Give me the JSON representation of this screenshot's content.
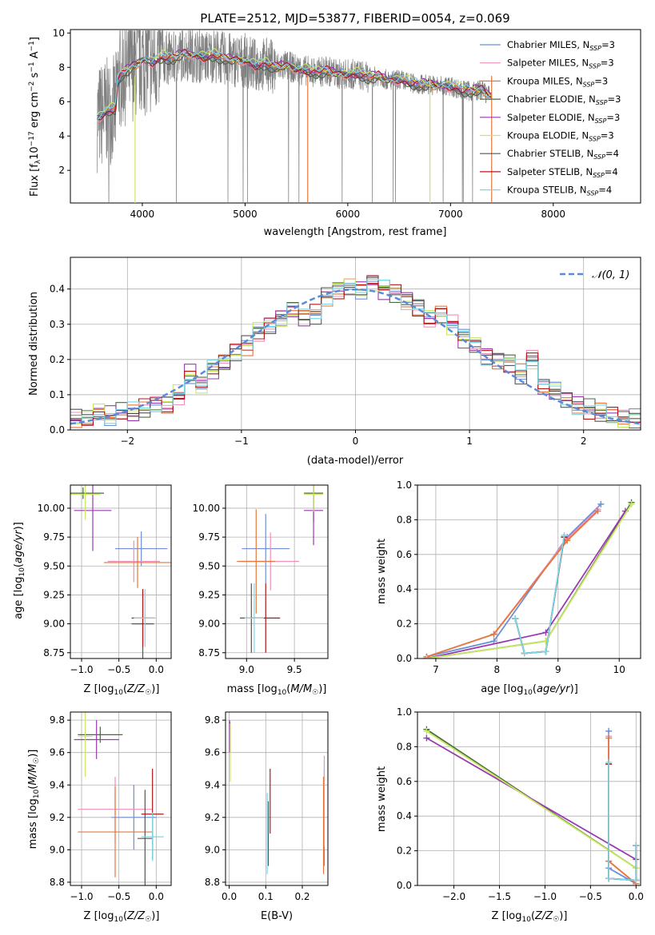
{
  "title": "PLATE=2512, MJD=53877, FIBERID=0054, z=0.069",
  "colors": {
    "Chabrier MILES": "#6f8fd8",
    "Salpeter MILES": "#f08fb8",
    "Kroupa MILES": "#e8763a",
    "Chabrier ELODIE": "#4a6a40",
    "Salpeter ELODIE": "#9a3ab0",
    "Kroupa ELODIE": "#c8e860",
    "Chabrier STELIB": "#555555",
    "Salpeter STELIB": "#b01818",
    "Kroupa STELIB": "#7ad8e8",
    "observed spectrum": "#808080",
    "normal curve": "#5b8bd8"
  },
  "chart_data": [
    {
      "id": "spectrum",
      "type": "line",
      "title": "PLATE=2512, MJD=53877, FIBERID=0054, z=0.069",
      "xlabel": "wavelength [Angstrom, rest frame]",
      "ylabel": "Flux [f_λ 10^-17 erg cm^-2 s^-1 A^-1]",
      "xlim": [
        3300,
        8850
      ],
      "ylim": [
        0.1,
        10.2
      ],
      "xticks": [
        "4000",
        "5000",
        "6000",
        "7000",
        "8000"
      ],
      "yticks": [
        "2",
        "4",
        "6",
        "8",
        "10"
      ],
      "grid": false,
      "legend_placement": "top-right",
      "legend": [
        "Chabrier MILES, N_SSP=3",
        "Salpeter MILES, N_SSP=3",
        "Kroupa MILES, N_SSP=3",
        "Chabrier ELODIE, N_SSP=3",
        "Salpeter ELODIE, N_SSP=3",
        "Kroupa ELODIE, N_SSP=3",
        "Chabrier STELIB, N_SSP=4",
        "Salpeter STELIB, N_SSP=4",
        "Kroupa STELIB, N_SSP=4"
      ],
      "model_curve": {
        "x": [
          3550,
          3650,
          3740,
          3760,
          3800,
          3900,
          4000,
          4100,
          4200,
          4300,
          4400,
          4500,
          4600,
          4700,
          4800,
          4900,
          5000,
          5100,
          5200,
          5300,
          5400,
          5500,
          5600,
          5700,
          5800,
          5900,
          6000,
          6100,
          6200,
          6300,
          6400,
          6500,
          6600,
          6700,
          6800,
          6900,
          7000,
          7100,
          7200,
          7300,
          7400
        ],
        "y": [
          5.0,
          5.4,
          5.6,
          7.2,
          7.6,
          8.0,
          8.4,
          8.3,
          8.6,
          8.5,
          8.8,
          8.7,
          8.6,
          8.7,
          8.5,
          8.4,
          8.4,
          8.1,
          8.2,
          8.0,
          8.1,
          7.9,
          7.8,
          7.7,
          7.8,
          7.6,
          7.6,
          7.6,
          7.4,
          7.5,
          7.2,
          7.3,
          7.1,
          7.0,
          7.0,
          6.9,
          6.9,
          6.7,
          6.6,
          6.7,
          6.3
        ]
      }
    },
    {
      "id": "residuals",
      "type": "line",
      "xlabel": "(data-model)/error",
      "ylabel": "Normed distribution",
      "xlim": [
        -2.5,
        2.5
      ],
      "ylim": [
        0,
        0.49
      ],
      "xticks": [
        "−2",
        "−1",
        "0",
        "1",
        "2"
      ],
      "yticks": [
        "0.0",
        "0.1",
        "0.2",
        "0.3",
        "0.4"
      ],
      "grid": true,
      "legend_placement": "top-right",
      "legend": [
        "𝒩(0, 1)"
      ],
      "bin_edges": [
        -2.5,
        -2.4,
        -2.3,
        -2.2,
        -2.1,
        -2.0,
        -1.9,
        -1.8,
        -1.7,
        -1.6,
        -1.5,
        -1.4,
        -1.3,
        -1.2,
        -1.1,
        -1.0,
        -0.9,
        -0.8,
        -0.7,
        -0.6,
        -0.5,
        -0.4,
        -0.3,
        -0.2,
        -0.1,
        0.0,
        0.1,
        0.2,
        0.3,
        0.4,
        0.5,
        0.6,
        0.7,
        0.8,
        0.9,
        1.0,
        1.1,
        1.2,
        1.3,
        1.4,
        1.5,
        1.6,
        1.7,
        1.8,
        1.9,
        2.0,
        2.1,
        2.2,
        2.3,
        2.4,
        2.5
      ],
      "histogram": [
        0.03,
        0.03,
        0.05,
        0.04,
        0.05,
        0.05,
        0.06,
        0.07,
        0.07,
        0.1,
        0.16,
        0.13,
        0.17,
        0.19,
        0.22,
        0.24,
        0.28,
        0.3,
        0.32,
        0.34,
        0.32,
        0.33,
        0.38,
        0.4,
        0.41,
        0.4,
        0.42,
        0.4,
        0.39,
        0.37,
        0.35,
        0.32,
        0.33,
        0.3,
        0.26,
        0.24,
        0.21,
        0.2,
        0.19,
        0.16,
        0.2,
        0.12,
        0.11,
        0.09,
        0.07,
        0.06,
        0.05,
        0.04,
        0.03,
        0.03
      ]
    },
    {
      "id": "age-vs-z",
      "type": "scatter",
      "xlabel": "Z [log₁₀(Z/Z☉)]",
      "ylabel": "age [log₁₀(age/yr)]",
      "xlim": [
        -1.15,
        0.2
      ],
      "ylim": [
        8.7,
        10.2
      ],
      "xticks": [
        "−1.0",
        "−0.5",
        "0.0"
      ],
      "yticks": [
        "8.75",
        "9.00",
        "9.25",
        "9.50",
        "9.75",
        "10.00"
      ],
      "grid": true,
      "error_crosses": [
        {
          "series": "Chabrier MILES",
          "x": -0.2,
          "xerr": 0.35,
          "y": 9.65,
          "yerr": 0.15
        },
        {
          "series": "Salpeter MILES",
          "x": -0.3,
          "xerr": 0.35,
          "y": 9.54,
          "yerr": 0.18
        },
        {
          "series": "Kroupa MILES",
          "x": -0.25,
          "xerr": 0.45,
          "y": 9.53,
          "yerr": 0.22
        },
        {
          "series": "Chabrier ELODIE",
          "x": -0.98,
          "xerr": 0.28,
          "y": 10.13,
          "yerr": 0.05
        },
        {
          "series": "Salpeter ELODIE",
          "x": -0.85,
          "xerr": 0.25,
          "y": 9.98,
          "yerr": 0.35
        },
        {
          "series": "Kroupa ELODIE",
          "x": -0.95,
          "xerr": 0.2,
          "y": 10.12,
          "yerr": 0.22
        },
        {
          "series": "Chabrier STELIB",
          "x": -0.18,
          "xerr": 0.15,
          "y": 9.0,
          "yerr": 0.3
        },
        {
          "series": "Salpeter STELIB",
          "x": -0.18,
          "xerr": 0.15,
          "y": 9.05,
          "yerr": 0.25
        },
        {
          "series": "Kroupa STELIB",
          "x": -0.15,
          "xerr": 0.15,
          "y": 9.05,
          "yerr": 0.25
        }
      ]
    },
    {
      "id": "age-vs-mass",
      "type": "scatter",
      "xlabel": "mass [log₁₀(M/M☉)]",
      "ylabel": "",
      "xlim": [
        8.78,
        9.85
      ],
      "ylim": [
        8.7,
        10.2
      ],
      "xticks": [
        "9.0",
        "9.5"
      ],
      "yticks": [
        "8.75",
        "9.00",
        "9.25",
        "9.50",
        "9.75",
        "10.00"
      ],
      "grid": true,
      "error_crosses": [
        {
          "series": "Chabrier MILES",
          "x": 9.2,
          "xerr": 0.25,
          "y": 9.65,
          "yerr": 0.3
        },
        {
          "series": "Salpeter MILES",
          "x": 9.25,
          "xerr": 0.3,
          "y": 9.54,
          "yerr": 0.25
        },
        {
          "series": "Kroupa MILES",
          "x": 9.1,
          "xerr": 0.2,
          "y": 9.54,
          "yerr": 0.45
        },
        {
          "series": "Chabrier ELODIE",
          "x": 9.7,
          "xerr": 0.1,
          "y": 10.13,
          "yerr": 0.25
        },
        {
          "series": "Salpeter ELODIE",
          "x": 9.7,
          "xerr": 0.1,
          "y": 9.98,
          "yerr": 0.3
        },
        {
          "series": "Kroupa ELODIE",
          "x": 9.7,
          "xerr": 0.1,
          "y": 10.12,
          "yerr": 0.15
        },
        {
          "series": "Chabrier STELIB",
          "x": 9.05,
          "xerr": 0.12,
          "y": 9.05,
          "yerr": 0.3
        },
        {
          "series": "Salpeter STELIB",
          "x": 9.2,
          "xerr": 0.15,
          "y": 9.05,
          "yerr": 0.3
        },
        {
          "series": "Kroupa STELIB",
          "x": 9.08,
          "xerr": 0.1,
          "y": 9.05,
          "yerr": 0.3
        }
      ]
    },
    {
      "id": "weight-vs-age",
      "type": "line",
      "xlabel": "age [log₁₀(age/yr)]",
      "ylabel": "mass weight",
      "xlim": [
        6.7,
        10.35
      ],
      "ylim": [
        0,
        1
      ],
      "xticks": [
        "7",
        "8",
        "9",
        "10"
      ],
      "yticks": [
        "0.0",
        "0.2",
        "0.4",
        "0.6",
        "0.8",
        "1.0"
      ],
      "grid": true,
      "series": [
        {
          "name": "Chabrier MILES",
          "x": [
            6.85,
            7.95,
            9.15,
            9.7
          ],
          "y": [
            0.01,
            0.1,
            0.7,
            0.89
          ]
        },
        {
          "name": "Salpeter MILES",
          "x": [
            6.85,
            7.95,
            9.15,
            9.65
          ],
          "y": [
            0.01,
            0.14,
            0.69,
            0.86
          ]
        },
        {
          "name": "Kroupa MILES",
          "x": [
            6.85,
            7.95,
            9.15,
            9.65
          ],
          "y": [
            0.01,
            0.14,
            0.68,
            0.85
          ]
        },
        {
          "name": "Chabrier ELODIE",
          "x": [
            6.85,
            8.8,
            10.2
          ],
          "y": [
            0.0,
            0.1,
            0.9
          ]
        },
        {
          "name": "Salpeter ELODIE",
          "x": [
            6.85,
            8.8,
            10.1
          ],
          "y": [
            0.0,
            0.15,
            0.85
          ]
        },
        {
          "name": "Kroupa ELODIE",
          "x": [
            6.85,
            8.8,
            10.2
          ],
          "y": [
            0.0,
            0.1,
            0.89
          ]
        },
        {
          "name": "Chabrier STELIB",
          "x": [
            8.3,
            8.45,
            8.8,
            9.1
          ],
          "y": [
            0.23,
            0.03,
            0.04,
            0.7
          ]
        },
        {
          "name": "Salpeter STELIB",
          "x": [
            8.3,
            8.45,
            8.8,
            9.1
          ],
          "y": [
            0.23,
            0.03,
            0.04,
            0.7
          ]
        },
        {
          "name": "Kroupa STELIB",
          "x": [
            8.3,
            8.45,
            8.8,
            9.1
          ],
          "y": [
            0.23,
            0.03,
            0.04,
            0.71
          ]
        }
      ]
    },
    {
      "id": "mass-vs-z",
      "type": "scatter",
      "xlabel": "Z [log₁₀(Z/Z☉)]",
      "ylabel": "mass [log₁₀(M/M☉)]",
      "xlim": [
        -1.15,
        0.2
      ],
      "ylim": [
        8.78,
        9.85
      ],
      "xticks": [
        "−1.0",
        "−0.5",
        "0.0"
      ],
      "yticks": [
        "8.8",
        "9.0",
        "9.2",
        "9.4",
        "9.6",
        "9.8"
      ],
      "grid": true,
      "error_crosses": [
        {
          "series": "Chabrier MILES",
          "x": -0.3,
          "xerr": 0.3,
          "y": 9.2,
          "yerr": 0.2
        },
        {
          "series": "Salpeter MILES",
          "x": -0.55,
          "xerr": 0.5,
          "y": 9.25,
          "yerr": 0.2
        },
        {
          "series": "Kroupa MILES",
          "x": -0.55,
          "xerr": 0.5,
          "y": 9.11,
          "yerr": 0.28
        },
        {
          "series": "Chabrier ELODIE",
          "x": -0.75,
          "xerr": 0.3,
          "y": 9.71,
          "yerr": 0.05
        },
        {
          "series": "Salpeter ELODIE",
          "x": -0.8,
          "xerr": 0.3,
          "y": 9.68,
          "yerr": 0.12
        },
        {
          "series": "Kroupa ELODIE",
          "x": -0.95,
          "xerr": 0.1,
          "y": 9.7,
          "yerr": 0.25
        },
        {
          "series": "Chabrier STELIB",
          "x": -0.15,
          "xerr": 0.1,
          "y": 9.07,
          "yerr": 0.3
        },
        {
          "series": "Salpeter STELIB",
          "x": -0.05,
          "xerr": 0.15,
          "y": 9.22,
          "yerr": 0.28
        },
        {
          "series": "Kroupa STELIB",
          "x": -0.05,
          "xerr": 0.15,
          "y": 9.08,
          "yerr": 0.15
        }
      ]
    },
    {
      "id": "mass-vs-ebv",
      "type": "scatter",
      "xlabel": "E(B-V)",
      "ylabel": "",
      "xlim": [
        -0.01,
        0.27
      ],
      "ylim": [
        8.78,
        9.85
      ],
      "xticks": [
        "0.0",
        "0.1",
        "0.2"
      ],
      "yticks": [
        "8.8",
        "9.0",
        "9.2",
        "9.4",
        "9.6",
        "9.8"
      ],
      "grid": true,
      "error_bars": [
        {
          "series": "Chabrier MILES",
          "x": 0.26,
          "y": 9.2,
          "yerr": 0.3
        },
        {
          "series": "Salpeter MILES",
          "x": 0.26,
          "y": 9.3,
          "yerr": 0.28
        },
        {
          "series": "Kroupa MILES",
          "x": 0.258,
          "y": 9.15,
          "yerr": 0.3
        },
        {
          "series": "Chabrier ELODIE",
          "x": 0.002,
          "y": 9.71,
          "yerr": 0.08
        },
        {
          "series": "Salpeter ELODIE",
          "x": 0.001,
          "y": 9.7,
          "yerr": 0.1
        },
        {
          "series": "Kroupa ELODIE",
          "x": 0.003,
          "y": 9.6,
          "yerr": 0.18
        },
        {
          "series": "Chabrier STELIB",
          "x": 0.107,
          "y": 9.1,
          "yerr": 0.2
        },
        {
          "series": "Salpeter STELIB",
          "x": 0.112,
          "y": 9.3,
          "yerr": 0.2
        },
        {
          "series": "Kroupa STELIB",
          "x": 0.104,
          "y": 9.1,
          "yerr": 0.25
        }
      ]
    },
    {
      "id": "weight-vs-z",
      "type": "line",
      "xlabel": "Z [log₁₀(Z/Z☉)]",
      "ylabel": "mass weight",
      "xlim": [
        -2.4,
        0.05
      ],
      "ylim": [
        0,
        1
      ],
      "xticks": [
        "−2.0",
        "−1.5",
        "−1.0",
        "−0.5",
        "0.0"
      ],
      "yticks": [
        "0.0",
        "0.2",
        "0.4",
        "0.6",
        "0.8",
        "1.0"
      ],
      "grid": true,
      "series": [
        {
          "name": "Chabrier MILES",
          "x": [
            0.0,
            -0.3,
            -0.3
          ],
          "y": [
            0.01,
            0.1,
            0.89
          ]
        },
        {
          "name": "Salpeter MILES",
          "x": [
            0.0,
            -0.3,
            -0.3
          ],
          "y": [
            0.01,
            0.14,
            0.86
          ]
        },
        {
          "name": "Kroupa MILES",
          "x": [
            0.0,
            -0.3,
            -0.3
          ],
          "y": [
            0.01,
            0.14,
            0.85
          ]
        },
        {
          "name": "Chabrier ELODIE",
          "x": [
            -2.3,
            0.0
          ],
          "y": [
            0.9,
            0.1
          ]
        },
        {
          "name": "Salpeter ELODIE",
          "x": [
            -2.3,
            0.0
          ],
          "y": [
            0.85,
            0.15
          ]
        },
        {
          "name": "Kroupa ELODIE",
          "x": [
            -2.3,
            0.0
          ],
          "y": [
            0.89,
            0.1
          ]
        },
        {
          "name": "Chabrier STELIB",
          "x": [
            0.0,
            0.0,
            -0.3,
            -0.3
          ],
          "y": [
            0.23,
            0.03,
            0.04,
            0.7
          ]
        },
        {
          "name": "Salpeter STELIB",
          "x": [
            0.0,
            0.0,
            -0.3,
            -0.3
          ],
          "y": [
            0.23,
            0.03,
            0.04,
            0.7
          ]
        },
        {
          "name": "Kroupa STELIB",
          "x": [
            0.0,
            0.0,
            -0.3,
            -0.3
          ],
          "y": [
            0.23,
            0.03,
            0.04,
            0.71
          ]
        }
      ]
    }
  ]
}
